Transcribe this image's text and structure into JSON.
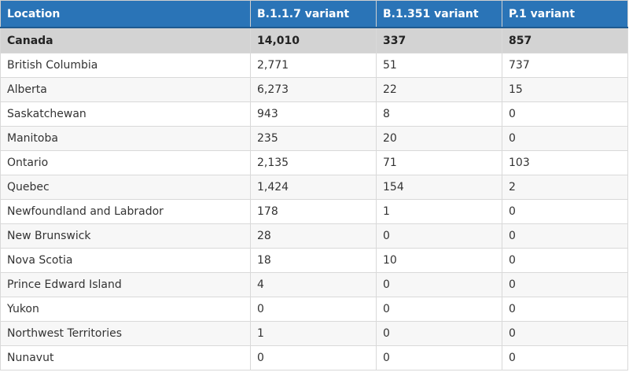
{
  "table": {
    "headers": [
      "Location",
      "B.1.1.7 variant",
      "B.1.351 variant",
      "P.1 variant"
    ],
    "total": {
      "location": "Canada",
      "b117": "14,010",
      "b1351": "337",
      "p1": "857"
    },
    "rows": [
      {
        "location": "British Columbia",
        "b117": "2,771",
        "b1351": "51",
        "p1": "737"
      },
      {
        "location": "Alberta",
        "b117": "6,273",
        "b1351": "22",
        "p1": "15"
      },
      {
        "location": "Saskatchewan",
        "b117": "943",
        "b1351": "8",
        "p1": "0"
      },
      {
        "location": "Manitoba",
        "b117": "235",
        "b1351": "20",
        "p1": "0"
      },
      {
        "location": "Ontario",
        "b117": "2,135",
        "b1351": "71",
        "p1": "103"
      },
      {
        "location": "Quebec",
        "b117": "1,424",
        "b1351": "154",
        "p1": "2"
      },
      {
        "location": "Newfoundland and Labrador",
        "b117": "178",
        "b1351": "1",
        "p1": "0"
      },
      {
        "location": "New Brunswick",
        "b117": "28",
        "b1351": "0",
        "p1": "0"
      },
      {
        "location": "Nova Scotia",
        "b117": "18",
        "b1351": "10",
        "p1": "0"
      },
      {
        "location": "Prince Edward Island",
        "b117": "4",
        "b1351": "0",
        "p1": "0"
      },
      {
        "location": "Yukon",
        "b117": "0",
        "b1351": "0",
        "p1": "0"
      },
      {
        "location": "Northwest Territories",
        "b117": "1",
        "b1351": "0",
        "p1": "0"
      },
      {
        "location": "Nunavut",
        "b117": "0",
        "b1351": "0",
        "p1": "0"
      }
    ]
  }
}
